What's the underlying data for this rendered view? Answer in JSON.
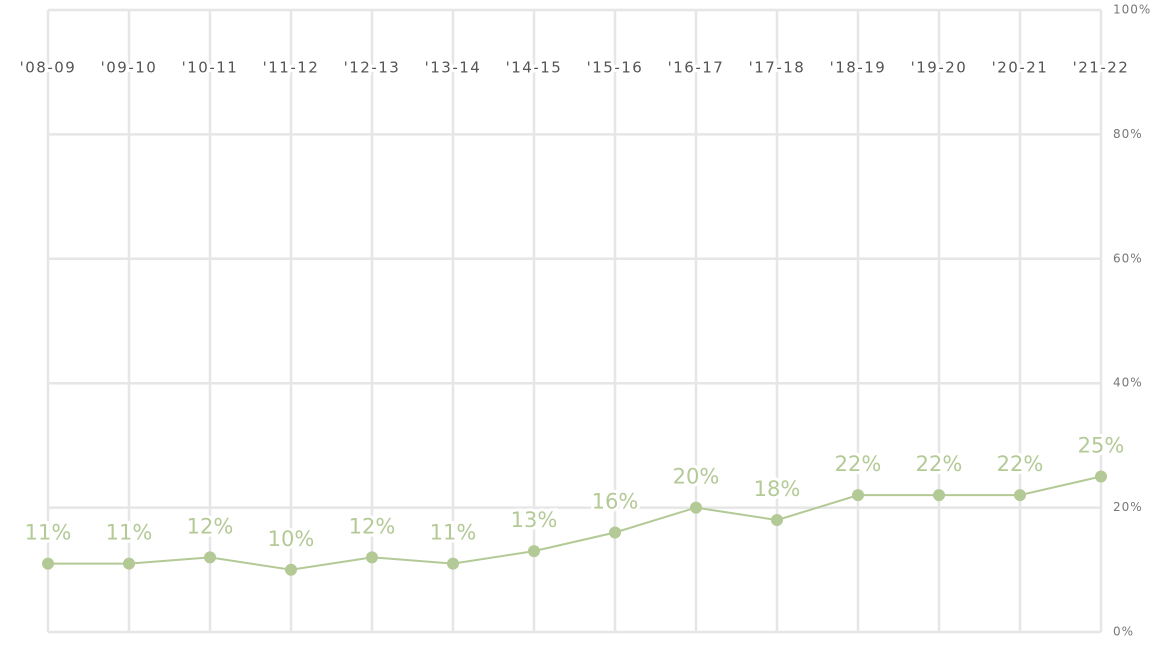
{
  "chart_data": {
    "type": "line",
    "categories": [
      "'08-09",
      "'09-10",
      "'10-11",
      "'11-12",
      "'12-13",
      "'13-14",
      "'14-15",
      "'15-16",
      "'16-17",
      "'17-18",
      "'18-19",
      "'19-20",
      "'20-21",
      "'21-22"
    ],
    "series": [
      {
        "color": "#b3c996",
        "values": [
          11,
          11,
          12,
          10,
          12,
          11,
          13,
          16,
          20,
          18,
          22,
          22,
          22,
          25
        ],
        "value_labels": [
          "11%",
          "11%",
          "12%",
          "10%",
          "12%",
          "11%",
          "13%",
          "16%",
          "20%",
          "18%",
          "22%",
          "22%",
          "22%",
          "25%"
        ]
      }
    ],
    "ylim": [
      0,
      100
    ],
    "yticks": [
      {
        "value": 0,
        "label": "0%"
      },
      {
        "value": 20,
        "label": "20%"
      },
      {
        "value": 40,
        "label": "40%"
      },
      {
        "value": 60,
        "label": "60%"
      },
      {
        "value": 80,
        "label": "80%"
      },
      {
        "value": 100,
        "label": "100%"
      }
    ],
    "grid": true
  }
}
